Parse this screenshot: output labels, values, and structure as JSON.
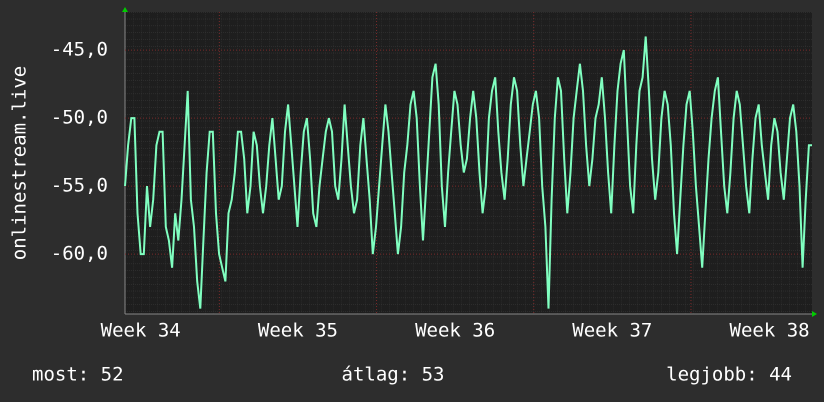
{
  "chart_data": {
    "type": "line",
    "ylabel": "onlinestream.live",
    "xlim": [
      33.9,
      38.27
    ],
    "xticks": [
      {
        "value": 34,
        "label": "Week 34"
      },
      {
        "value": 35,
        "label": "Week 35"
      },
      {
        "value": 36,
        "label": "Week 36"
      },
      {
        "value": 37,
        "label": "Week 37"
      },
      {
        "value": 38,
        "label": "Week 38"
      }
    ],
    "ylim": [
      -64.4,
      -42.2
    ],
    "yticks": [
      {
        "value": -45,
        "label": "-45,0"
      },
      {
        "value": -50,
        "label": "-50,0"
      },
      {
        "value": -55,
        "label": "-55,0"
      },
      {
        "value": -60,
        "label": "-60,0"
      }
    ],
    "grid": true,
    "series": [
      {
        "color": "#80ffc0",
        "values": [
          -55,
          -52,
          -50,
          -50,
          -57,
          -60,
          -60,
          -55,
          -58,
          -56,
          -52,
          -51,
          -51,
          -58,
          -59,
          -61,
          -57,
          -59,
          -56,
          -52,
          -48,
          -56,
          -58,
          -62,
          -64,
          -59,
          -54,
          -51,
          -51,
          -57,
          -60,
          -61,
          -62,
          -57,
          -56,
          -54,
          -51,
          -51,
          -53,
          -57,
          -55,
          -51,
          -52,
          -55,
          -57,
          -55,
          -52,
          -50,
          -53,
          -56,
          -55,
          -51,
          -49,
          -52,
          -55,
          -58,
          -54,
          -51,
          -50,
          -53,
          -57,
          -58,
          -55,
          -53,
          -51,
          -50,
          -51,
          -55,
          -56,
          -53,
          -49,
          -52,
          -55,
          -57,
          -56,
          -52,
          -50,
          -53,
          -56,
          -60,
          -58,
          -55,
          -52,
          -49,
          -51,
          -54,
          -57,
          -60,
          -58,
          -54,
          -52,
          -49,
          -48,
          -50,
          -55,
          -59,
          -55,
          -51,
          -47,
          -46,
          -49,
          -55,
          -58,
          -54,
          -51,
          -48,
          -49,
          -52,
          -54,
          -53,
          -50,
          -48,
          -50,
          -54,
          -57,
          -55,
          -50,
          -48,
          -47,
          -51,
          -54,
          -56,
          -53,
          -49,
          -47,
          -48,
          -52,
          -55,
          -53,
          -51,
          -49,
          -48,
          -50,
          -55,
          -58,
          -64,
          -56,
          -50,
          -47,
          -48,
          -53,
          -57,
          -54,
          -50,
          -48,
          -46,
          -48,
          -52,
          -55,
          -53,
          -50,
          -49,
          -47,
          -50,
          -54,
          -57,
          -52,
          -48,
          -46,
          -45,
          -50,
          -55,
          -57,
          -52,
          -48,
          -47,
          -44,
          -48,
          -53,
          -56,
          -54,
          -50,
          -48,
          -49,
          -52,
          -57,
          -60,
          -56,
          -52,
          -49,
          -48,
          -51,
          -55,
          -58,
          -61,
          -57,
          -53,
          -50,
          -48,
          -47,
          -51,
          -55,
          -57,
          -54,
          -50,
          -48,
          -49,
          -52,
          -55,
          -57,
          -53,
          -50,
          -49,
          -52,
          -54,
          -56,
          -52,
          -50,
          -51,
          -54,
          -56,
          -53,
          -50,
          -49,
          -51,
          -55,
          -61,
          -56,
          -52,
          -52
        ]
      }
    ],
    "footer": {
      "current": "most: 52",
      "average": "átlag: 53",
      "best": "legjobb: 44"
    }
  }
}
